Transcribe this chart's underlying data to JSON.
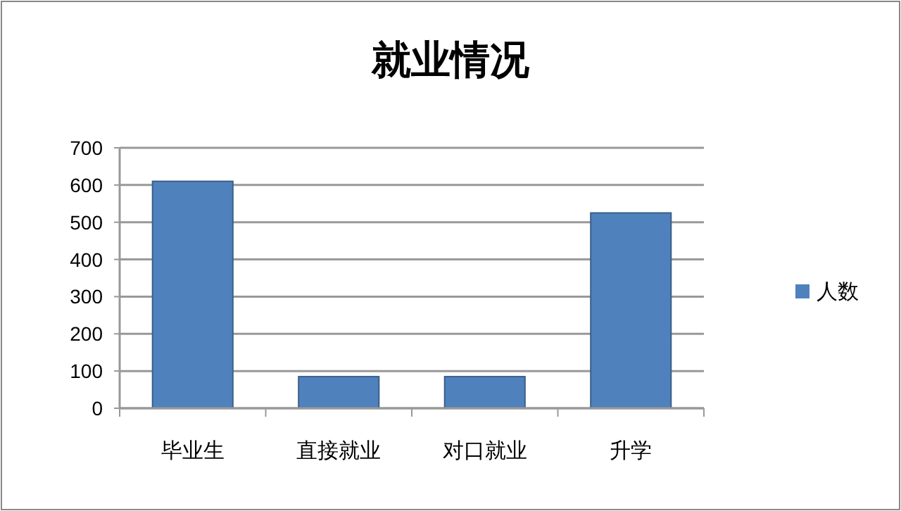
{
  "chart_data": {
    "type": "bar",
    "title": "就业情况",
    "categories": [
      "毕业生",
      "直接就业",
      "对口就业",
      "升学"
    ],
    "series": [
      {
        "name": "人数",
        "color": "#4f81bd",
        "values": [
          610,
          85,
          85,
          525
        ]
      }
    ],
    "ylim": [
      0,
      700
    ],
    "yticks": [
      0,
      100,
      200,
      300,
      400,
      500,
      600,
      700
    ],
    "grid": "y",
    "legend": "right"
  }
}
